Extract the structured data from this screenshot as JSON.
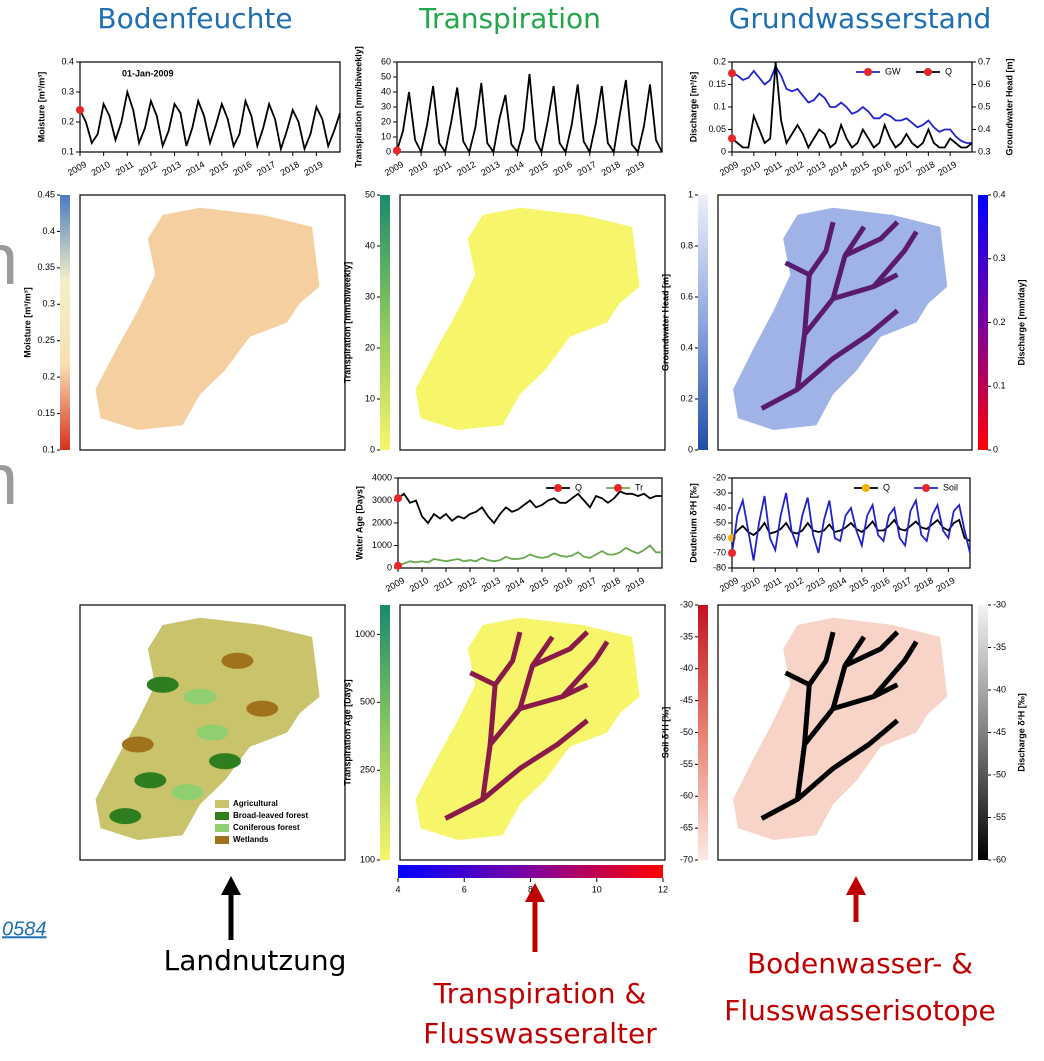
{
  "headers": [
    {
      "text": "Bodenfeuchte",
      "color": "#1f6fb4"
    },
    {
      "text": "Transpiration",
      "color": "#22a84a"
    },
    {
      "text": "Grundwasserstand",
      "color": "#1f6fb4"
    }
  ],
  "side_text": [
    "n",
    "n"
  ],
  "link": "0584",
  "captions": [
    {
      "lines": [
        "Landnutzung"
      ],
      "color": "#000000"
    },
    {
      "lines": [
        "Transpiration &",
        "Flusswasseralter"
      ],
      "color": "#c00000"
    },
    {
      "lines": [
        "Bodenwasser- &",
        "Flusswasserisotope"
      ],
      "color": "#c00000"
    }
  ],
  "chart_data": [
    {
      "type": "line",
      "ylabel": "Moisture [m³/m³]",
      "annotation": "01-Jan-2009",
      "x": [
        2009,
        2009.25,
        2009.5,
        2009.75,
        2010,
        2010.25,
        2010.5,
        2010.75,
        2011,
        2011.25,
        2011.5,
        2011.75,
        2012,
        2012.25,
        2012.5,
        2012.75,
        2013,
        2013.25,
        2013.5,
        2013.75,
        2014,
        2014.25,
        2014.5,
        2014.75,
        2015,
        2015.25,
        2015.5,
        2015.75,
        2016,
        2016.25,
        2016.5,
        2016.75,
        2017,
        2017.25,
        2017.5,
        2017.75,
        2018,
        2018.25,
        2018.5,
        2018.75,
        2019,
        2019.25,
        2019.5,
        2019.75,
        2020
      ],
      "xlim": [
        2009,
        2020
      ],
      "xticks": [
        2009,
        2010,
        2011,
        2012,
        2013,
        2014,
        2015,
        2016,
        2017,
        2018,
        2019
      ],
      "ylim": [
        0.1,
        0.4
      ],
      "yticks": [
        0.1,
        0.2,
        0.3,
        0.4
      ],
      "series": [
        {
          "color": "#000000",
          "marker_color": "#e8262a",
          "values": [
            0.24,
            0.2,
            0.13,
            0.16,
            0.26,
            0.22,
            0.14,
            0.2,
            0.3,
            0.24,
            0.13,
            0.18,
            0.27,
            0.22,
            0.12,
            0.17,
            0.26,
            0.23,
            0.12,
            0.18,
            0.27,
            0.22,
            0.13,
            0.19,
            0.26,
            0.21,
            0.12,
            0.16,
            0.27,
            0.22,
            0.12,
            0.18,
            0.26,
            0.21,
            0.11,
            0.17,
            0.24,
            0.2,
            0.11,
            0.16,
            0.25,
            0.21,
            0.12,
            0.17,
            0.23
          ]
        }
      ]
    },
    {
      "type": "line",
      "ylabel": "Transpiration [mm/biweekly]",
      "x": [
        2009,
        2009.25,
        2009.5,
        2009.75,
        2010,
        2010.25,
        2010.5,
        2010.75,
        2011,
        2011.25,
        2011.5,
        2011.75,
        2012,
        2012.25,
        2012.5,
        2012.75,
        2013,
        2013.25,
        2013.5,
        2013.75,
        2014,
        2014.25,
        2014.5,
        2014.75,
        2015,
        2015.25,
        2015.5,
        2015.75,
        2016,
        2016.25,
        2016.5,
        2016.75,
        2017,
        2017.25,
        2017.5,
        2017.75,
        2018,
        2018.25,
        2018.5,
        2018.75,
        2019,
        2019.25,
        2019.5,
        2019.75,
        2020
      ],
      "xlim": [
        2009,
        2020
      ],
      "xticks": [
        2009,
        2010,
        2011,
        2012,
        2013,
        2014,
        2015,
        2016,
        2017,
        2018,
        2019
      ],
      "ylim": [
        0,
        60
      ],
      "yticks": [
        0,
        10,
        20,
        30,
        40,
        50,
        60
      ],
      "series": [
        {
          "color": "#000000",
          "marker_color": "#e8262a",
          "values": [
            1,
            14,
            40,
            8,
            0,
            18,
            44,
            6,
            0,
            20,
            43,
            7,
            0,
            16,
            46,
            6,
            0,
            22,
            38,
            5,
            0,
            15,
            52,
            8,
            0,
            20,
            44,
            6,
            0,
            18,
            45,
            7,
            0,
            19,
            44,
            6,
            0,
            25,
            48,
            5,
            0,
            17,
            45,
            8,
            0
          ]
        }
      ]
    },
    {
      "type": "line",
      "ylabel": "Discharge [m³/s]",
      "y2label": "Groundwater Head [m]",
      "x": [
        2009,
        2009.25,
        2009.5,
        2009.75,
        2010,
        2010.25,
        2010.5,
        2010.75,
        2011,
        2011.25,
        2011.5,
        2011.75,
        2012,
        2012.25,
        2012.5,
        2012.75,
        2013,
        2013.25,
        2013.5,
        2013.75,
        2014,
        2014.25,
        2014.5,
        2014.75,
        2015,
        2015.25,
        2015.5,
        2015.75,
        2016,
        2016.25,
        2016.5,
        2016.75,
        2017,
        2017.25,
        2017.5,
        2017.75,
        2018,
        2018.25,
        2018.5,
        2018.75,
        2019,
        2019.25,
        2019.5,
        2019.75,
        2020
      ],
      "xlim": [
        2009,
        2020
      ],
      "xticks": [
        2009,
        2010,
        2011,
        2012,
        2013,
        2014,
        2015,
        2016,
        2017,
        2018,
        2019
      ],
      "ylim": [
        0,
        0.2
      ],
      "yticks": [
        0,
        0.05,
        0.1,
        0.15,
        0.2
      ],
      "y2lim": [
        0.3,
        0.7
      ],
      "y2ticks": [
        0.3,
        0.4,
        0.5,
        0.6,
        0.7
      ],
      "series": [
        {
          "name": "GW",
          "axis": "y2",
          "color": "#2222cc",
          "marker_color": "#e8262a",
          "values": [
            0.65,
            0.64,
            0.62,
            0.63,
            0.66,
            0.63,
            0.6,
            0.62,
            0.68,
            0.64,
            0.58,
            0.57,
            0.58,
            0.55,
            0.52,
            0.53,
            0.56,
            0.54,
            0.5,
            0.5,
            0.52,
            0.5,
            0.47,
            0.48,
            0.5,
            0.48,
            0.45,
            0.45,
            0.47,
            0.46,
            0.44,
            0.44,
            0.45,
            0.43,
            0.41,
            0.42,
            0.44,
            0.41,
            0.39,
            0.4,
            0.4,
            0.37,
            0.35,
            0.34,
            0.34
          ]
        },
        {
          "name": "Q",
          "color": "#000000",
          "marker_color": "#e8262a",
          "values": [
            0.03,
            0.02,
            0.01,
            0.01,
            0.08,
            0.05,
            0.02,
            0.03,
            0.2,
            0.07,
            0.02,
            0.04,
            0.06,
            0.04,
            0.01,
            0.03,
            0.05,
            0.04,
            0.01,
            0.02,
            0.06,
            0.03,
            0.01,
            0.02,
            0.05,
            0.03,
            0.01,
            0.02,
            0.06,
            0.03,
            0.01,
            0.02,
            0.04,
            0.02,
            0.01,
            0.02,
            0.05,
            0.02,
            0.01,
            0.01,
            0.03,
            0.02,
            0.01,
            0.01,
            0.02
          ]
        }
      ]
    },
    {
      "type": "map",
      "map_color": "#f5cfa0",
      "colorbars": [
        {
          "side": "left",
          "label": "Moisture [m³/m³]",
          "colors": [
            "#d7301f",
            "#f6dfb3",
            "#f2efc8",
            "#4a7bc0"
          ],
          "ylim": [
            0.1,
            0.45
          ],
          "yticks": [
            0.1,
            0.15,
            0.2,
            0.25,
            0.3,
            0.35,
            0.4,
            0.45
          ]
        }
      ]
    },
    {
      "type": "map",
      "map_color": "#f7f56a",
      "colorbars": [
        {
          "side": "left",
          "label": "Transpiration [mm/biweekly]",
          "colors": [
            "#f7f56a",
            "#8cc860",
            "#1a8a6a"
          ],
          "ylim": [
            0,
            50
          ],
          "yticks": [
            0,
            10,
            20,
            30,
            40,
            50
          ]
        }
      ]
    },
    {
      "type": "map",
      "map_color": "#9fb3e6",
      "river_color": "#5a1a6e",
      "colorbars": [
        {
          "side": "left",
          "label": "Groundwater Head [m]",
          "colors": [
            "#1f4fa8",
            "#8fa6df",
            "#eef0fa"
          ],
          "ylim": [
            0,
            1
          ],
          "yticks": [
            0,
            0.2,
            0.4,
            0.6,
            0.8,
            1
          ]
        },
        {
          "side": "right",
          "label": "Discharge [mm/day]",
          "colors": [
            "#ff0000",
            "#7a00a0",
            "#0000ff"
          ],
          "ylim": [
            0,
            0.4
          ],
          "yticks": [
            0,
            0.1,
            0.2,
            0.3,
            0.4
          ]
        }
      ]
    },
    {
      "type": "line",
      "ylabel": "Water Age [Days]",
      "x": [
        2009,
        2009.25,
        2009.5,
        2009.75,
        2010,
        2010.25,
        2010.5,
        2010.75,
        2011,
        2011.25,
        2011.5,
        2011.75,
        2012,
        2012.25,
        2012.5,
        2012.75,
        2013,
        2013.25,
        2013.5,
        2013.75,
        2014,
        2014.25,
        2014.5,
        2014.75,
        2015,
        2015.25,
        2015.5,
        2015.75,
        2016,
        2016.25,
        2016.5,
        2016.75,
        2017,
        2017.25,
        2017.5,
        2017.75,
        2018,
        2018.25,
        2018.5,
        2018.75,
        2019,
        2019.25,
        2019.5,
        2019.75,
        2020
      ],
      "xlim": [
        2009,
        2020
      ],
      "xticks": [
        2009,
        2010,
        2011,
        2012,
        2013,
        2014,
        2015,
        2016,
        2017,
        2018,
        2019
      ],
      "ylim": [
        0,
        4000
      ],
      "yticks": [
        0,
        1000,
        2000,
        3000,
        4000
      ],
      "series": [
        {
          "name": "Q",
          "color": "#000000",
          "marker_color": "#e8262a",
          "values": [
            3100,
            3300,
            2900,
            3000,
            2300,
            2000,
            2400,
            2200,
            2400,
            2100,
            2300,
            2200,
            2400,
            2500,
            2700,
            2300,
            2000,
            2400,
            2700,
            2500,
            2600,
            2800,
            3000,
            2700,
            2800,
            3000,
            3100,
            2900,
            2900,
            3100,
            3300,
            3000,
            2700,
            3200,
            3100,
            2900,
            3100,
            3400,
            3300,
            3300,
            3200,
            3300,
            3100,
            3200,
            3200
          ]
        },
        {
          "name": "Tr",
          "color": "#6aa84f",
          "marker_color": "#e8262a",
          "values": [
            100,
            200,
            300,
            250,
            300,
            250,
            400,
            350,
            300,
            350,
            400,
            300,
            350,
            300,
            450,
            350,
            300,
            350,
            500,
            400,
            400,
            450,
            600,
            500,
            450,
            500,
            650,
            550,
            500,
            550,
            700,
            500,
            450,
            600,
            750,
            600,
            600,
            700,
            900,
            750,
            650,
            800,
            1000,
            700,
            700
          ]
        }
      ]
    },
    {
      "type": "line",
      "ylabel": "Deuterium δ²H [‰]",
      "x": [
        2009,
        2009.25,
        2009.5,
        2009.75,
        2010,
        2010.25,
        2010.5,
        2010.75,
        2011,
        2011.25,
        2011.5,
        2011.75,
        2012,
        2012.25,
        2012.5,
        2012.75,
        2013,
        2013.25,
        2013.5,
        2013.75,
        2014,
        2014.25,
        2014.5,
        2014.75,
        2015,
        2015.25,
        2015.5,
        2015.75,
        2016,
        2016.25,
        2016.5,
        2016.75,
        2017,
        2017.25,
        2017.5,
        2017.75,
        2018,
        2018.25,
        2018.5,
        2018.75,
        2019,
        2019.25,
        2019.5,
        2019.75,
        2020
      ],
      "xlim": [
        2009,
        2020
      ],
      "xticks": [
        2009,
        2010,
        2011,
        2012,
        2013,
        2014,
        2015,
        2016,
        2017,
        2018,
        2019
      ],
      "ylim": [
        -80,
        -20
      ],
      "yticks": [
        -80,
        -70,
        -60,
        -50,
        -40,
        -30,
        -20
      ],
      "series": [
        {
          "name": "Q",
          "color": "#000000",
          "marker_color": "#f0b400",
          "values": [
            -60,
            -55,
            -52,
            -56,
            -58,
            -55,
            -50,
            -57,
            -56,
            -54,
            -50,
            -56,
            -57,
            -55,
            -50,
            -55,
            -56,
            -55,
            -51,
            -56,
            -55,
            -53,
            -50,
            -54,
            -56,
            -53,
            -49,
            -55,
            -55,
            -52,
            -48,
            -54,
            -55,
            -52,
            -49,
            -53,
            -54,
            -51,
            -48,
            -53,
            -55,
            -50,
            -48,
            -60,
            -62
          ]
        },
        {
          "name": "Soil",
          "color": "#2222cc",
          "marker_color": "#e8262a",
          "values": [
            -70,
            -45,
            -35,
            -55,
            -75,
            -50,
            -32,
            -60,
            -68,
            -45,
            -30,
            -55,
            -65,
            -45,
            -33,
            -58,
            -70,
            -48,
            -35,
            -60,
            -62,
            -45,
            -40,
            -55,
            -65,
            -45,
            -38,
            -58,
            -62,
            -45,
            -40,
            -60,
            -65,
            -42,
            -35,
            -58,
            -62,
            -45,
            -38,
            -55,
            -60,
            -42,
            -38,
            -55,
            -70
          ]
        }
      ]
    },
    {
      "type": "map",
      "map_color": "#c9c36b",
      "legend": [
        {
          "name": "Agricultural",
          "color": "#c9c36b"
        },
        {
          "name": "Broad-leaved forest",
          "color": "#2e7d1f"
        },
        {
          "name": "Coniferous forest",
          "color": "#8fcf6f"
        },
        {
          "name": "Wetlands",
          "color": "#a0721c"
        }
      ]
    },
    {
      "type": "map",
      "map_color": "#f7f56a",
      "river_color": "#8a1a4a",
      "colorbars": [
        {
          "side": "left",
          "label": "Transpiration Age [Days]",
          "log": true,
          "colors": [
            "#f7f56a",
            "#8cc860",
            "#1a8a6a"
          ],
          "ylim": [
            100,
            1350
          ],
          "yticks": [
            100,
            250,
            500,
            1000
          ]
        },
        {
          "side": "bottom",
          "colors": [
            "#0000ff",
            "#8000a0",
            "#ff0000"
          ],
          "xlim": [
            4,
            12
          ],
          "xticks": [
            4,
            6,
            8,
            10,
            12
          ]
        }
      ]
    },
    {
      "type": "map",
      "map_color": "#f8d3c8",
      "river_color": "#000000",
      "colorbars": [
        {
          "side": "left",
          "label": "Soil δ²H [‰]",
          "colors": [
            "#fde9e4",
            "#e88070",
            "#c0141e"
          ],
          "ylim": [
            -70,
            -30
          ],
          "yticks": [
            -70,
            -65,
            -60,
            -55,
            -50,
            -45,
            -40,
            -35,
            -30
          ]
        },
        {
          "side": "right",
          "label": "Discharge δ²H [‰]",
          "colors": [
            "#000000",
            "#808080",
            "#f4f4f4"
          ],
          "ylim": [
            -60,
            -30
          ],
          "yticks": [
            -60,
            -55,
            -50,
            -45,
            -40,
            -35,
            -30
          ]
        }
      ]
    }
  ]
}
